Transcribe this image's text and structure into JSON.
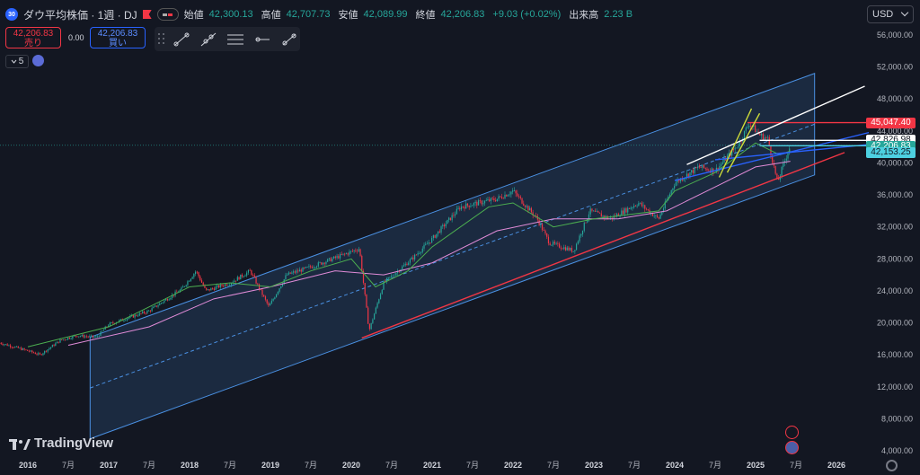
{
  "header": {
    "symbol_badge": "30",
    "title": "ダウ平均株価 · 1週 · DJ",
    "ohlc": [
      {
        "label": "始値",
        "value": "42,300.13"
      },
      {
        "label": "高値",
        "value": "42,707.73"
      },
      {
        "label": "安値",
        "value": "42,089.99"
      },
      {
        "label": "終値",
        "value": "42,206.83"
      },
      {
        "label": "",
        "value": "+9.03 (+0.02%)"
      },
      {
        "label": "出来高",
        "value": "2.23 B"
      }
    ]
  },
  "trade": {
    "sell_price": "42,206.83",
    "sell_label": "売り",
    "spread": "0.00",
    "buy_price": "42,206.83",
    "buy_label": "買い"
  },
  "toolbar": {
    "tools": [
      "trend-line-icon",
      "extended-line-icon",
      "parallel-channel-icon",
      "horizontal-ray-icon",
      "info-line-icon"
    ]
  },
  "indicator_toggle": {
    "count": "5"
  },
  "currency": "USD",
  "logo": {
    "text": "TradingView"
  },
  "price_labels": [
    {
      "value": "45,047.40",
      "bg": "#f23645",
      "fg": "#ffffff",
      "y": 45047.4
    },
    {
      "value": "42,826.98",
      "bg": "#ffffff",
      "fg": "#131722",
      "y": 42826.98
    },
    {
      "value": "42,206.83",
      "bg": "#26a69a",
      "fg": "#ffffff",
      "y": 42206.83
    },
    {
      "value": "42,153.25",
      "bg": "#4dd0e1",
      "fg": "#131722",
      "y": 42153.25
    }
  ],
  "colors": {
    "background": "#131722",
    "up": "#26a69a",
    "down": "#f23645",
    "channel": "#4a90e2",
    "ma_fast": "#4caf50",
    "ma_slow": "#e08bd7"
  },
  "chart_data": {
    "type": "candlestick",
    "title": "",
    "ylim": [
      4000,
      58000
    ],
    "y_ticks": [
      {
        "value": 56000,
        "label": "56,000.00"
      },
      {
        "value": 52000,
        "label": "52,000.00"
      },
      {
        "value": 48000,
        "label": "48,000.00"
      },
      {
        "value": 44000,
        "label": "44,000.00"
      },
      {
        "value": 40000,
        "label": "40,000.00"
      },
      {
        "value": 36000,
        "label": "36,000.00"
      },
      {
        "value": 32000,
        "label": "32,000.00"
      },
      {
        "value": 28000,
        "label": "28,000.00"
      },
      {
        "value": 24000,
        "label": "24,000.00"
      },
      {
        "value": 20000,
        "label": "20,000.00"
      },
      {
        "value": 16000,
        "label": "16,000.00"
      },
      {
        "value": 12000,
        "label": "12,000.00"
      },
      {
        "value": 8000,
        "label": "8,000.00"
      },
      {
        "value": 4000,
        "label": "4,000.00"
      }
    ],
    "x_ticks": [
      {
        "t": 2016.0,
        "label": "2016"
      },
      {
        "t": 2016.5,
        "label": "7月"
      },
      {
        "t": 2017.0,
        "label": "2017"
      },
      {
        "t": 2017.5,
        "label": "7月"
      },
      {
        "t": 2018.0,
        "label": "2018"
      },
      {
        "t": 2018.5,
        "label": "7月"
      },
      {
        "t": 2019.0,
        "label": "2019"
      },
      {
        "t": 2019.5,
        "label": "7月"
      },
      {
        "t": 2020.0,
        "label": "2020"
      },
      {
        "t": 2020.5,
        "label": "7月"
      },
      {
        "t": 2021.0,
        "label": "2021"
      },
      {
        "t": 2021.5,
        "label": "7月"
      },
      {
        "t": 2022.0,
        "label": "2022"
      },
      {
        "t": 2022.5,
        "label": "7月"
      },
      {
        "t": 2023.0,
        "label": "2023"
      },
      {
        "t": 2023.5,
        "label": "7月"
      },
      {
        "t": 2024.0,
        "label": "2024"
      },
      {
        "t": 2024.5,
        "label": "7月"
      },
      {
        "t": 2025.0,
        "label": "2025"
      },
      {
        "t": 2025.5,
        "label": "7月"
      },
      {
        "t": 2026.0,
        "label": "2026"
      }
    ],
    "xlim": [
      2015.63,
      2026.6
    ],
    "price_path": [
      [
        2015.65,
        17500
      ],
      [
        2016.0,
        16500
      ],
      [
        2016.15,
        16000
      ],
      [
        2016.4,
        17800
      ],
      [
        2016.6,
        18400
      ],
      [
        2016.85,
        18200
      ],
      [
        2017.0,
        19800
      ],
      [
        2017.5,
        21500
      ],
      [
        2017.9,
        24200
      ],
      [
        2018.08,
        26500
      ],
      [
        2018.2,
        24000
      ],
      [
        2018.5,
        25000
      ],
      [
        2018.75,
        26500
      ],
      [
        2018.98,
        22000
      ],
      [
        2019.2,
        26000
      ],
      [
        2019.5,
        27000
      ],
      [
        2019.9,
        28500
      ],
      [
        2020.1,
        29300
      ],
      [
        2020.22,
        19000
      ],
      [
        2020.4,
        25000
      ],
      [
        2020.75,
        28000
      ],
      [
        2021.0,
        30500
      ],
      [
        2021.35,
        34500
      ],
      [
        2021.8,
        35500
      ],
      [
        2022.0,
        36500
      ],
      [
        2022.3,
        33000
      ],
      [
        2022.45,
        30000
      ],
      [
        2022.75,
        29000
      ],
      [
        2022.95,
        34000
      ],
      [
        2023.2,
        33000
      ],
      [
        2023.55,
        35000
      ],
      [
        2023.8,
        33000
      ],
      [
        2024.0,
        37500
      ],
      [
        2024.3,
        39500
      ],
      [
        2024.5,
        39000
      ],
      [
        2024.8,
        42500
      ],
      [
        2024.92,
        45000
      ],
      [
        2025.05,
        43500
      ],
      [
        2025.15,
        43000
      ],
      [
        2025.27,
        37500
      ],
      [
        2025.35,
        40000
      ],
      [
        2025.43,
        42200
      ]
    ],
    "ma_fast": [
      [
        2016.0,
        17000
      ],
      [
        2017.0,
        19500
      ],
      [
        2018.0,
        24500
      ],
      [
        2018.5,
        25000
      ],
      [
        2019.0,
        24500
      ],
      [
        2019.5,
        26500
      ],
      [
        2020.0,
        28000
      ],
      [
        2020.3,
        24500
      ],
      [
        2020.7,
        26500
      ],
      [
        2021.0,
        29500
      ],
      [
        2021.7,
        34500
      ],
      [
        2022.0,
        35000
      ],
      [
        2022.5,
        32000
      ],
      [
        2023.0,
        33000
      ],
      [
        2023.8,
        34000
      ],
      [
        2024.0,
        36500
      ],
      [
        2024.5,
        38800
      ],
      [
        2025.0,
        42500
      ],
      [
        2025.3,
        41000
      ],
      [
        2025.43,
        41500
      ]
    ],
    "ma_slow": [
      [
        2016.5,
        17200
      ],
      [
        2017.5,
        19500
      ],
      [
        2018.3,
        23000
      ],
      [
        2019.0,
        24500
      ],
      [
        2019.8,
        26500
      ],
      [
        2020.4,
        26000
      ],
      [
        2021.0,
        27500
      ],
      [
        2021.8,
        31500
      ],
      [
        2022.5,
        33000
      ],
      [
        2023.3,
        33000
      ],
      [
        2023.9,
        34000
      ],
      [
        2024.5,
        37000
      ],
      [
        2025.0,
        39500
      ],
      [
        2025.43,
        40200
      ]
    ],
    "channel": {
      "x_start": 2016.77,
      "x_end": 2025.73,
      "upper": [
        18200,
        51200
      ],
      "lower": [
        5500,
        38500
      ],
      "mid": [
        11850,
        44850
      ]
    },
    "trend_lines": [
      {
        "color": "#f23645",
        "from": [
          2020.13,
          18100
        ],
        "to": [
          2026.1,
          41300
        ]
      },
      {
        "color": "#f23645",
        "from": [
          2024.9,
          45047.4
        ],
        "to": [
          2026.4,
          45047.4
        ]
      },
      {
        "color": "#2962ff",
        "from": [
          2024.0,
          37800
        ],
        "to": [
          2026.4,
          43800
        ]
      },
      {
        "color": "#2962ff",
        "from": [
          2024.5,
          40400
        ],
        "to": [
          2026.4,
          42300
        ]
      },
      {
        "color": "#ffffff",
        "from": [
          2024.15,
          39800
        ],
        "to": [
          2026.35,
          49600
        ]
      },
      {
        "color": "#cddc39",
        "from": [
          2024.55,
          38200
        ],
        "to": [
          2024.95,
          46800
        ]
      },
      {
        "color": "#cddc39",
        "from": [
          2024.65,
          38800
        ],
        "to": [
          2025.05,
          46200
        ]
      },
      {
        "color": "#4dd0e1",
        "from": [
          2025.05,
          42153.25
        ],
        "to": [
          2026.4,
          42153.25
        ]
      },
      {
        "color": "#ffffff",
        "from": [
          2025.05,
          42826.98
        ],
        "to": [
          2026.4,
          42826.98
        ]
      }
    ]
  }
}
